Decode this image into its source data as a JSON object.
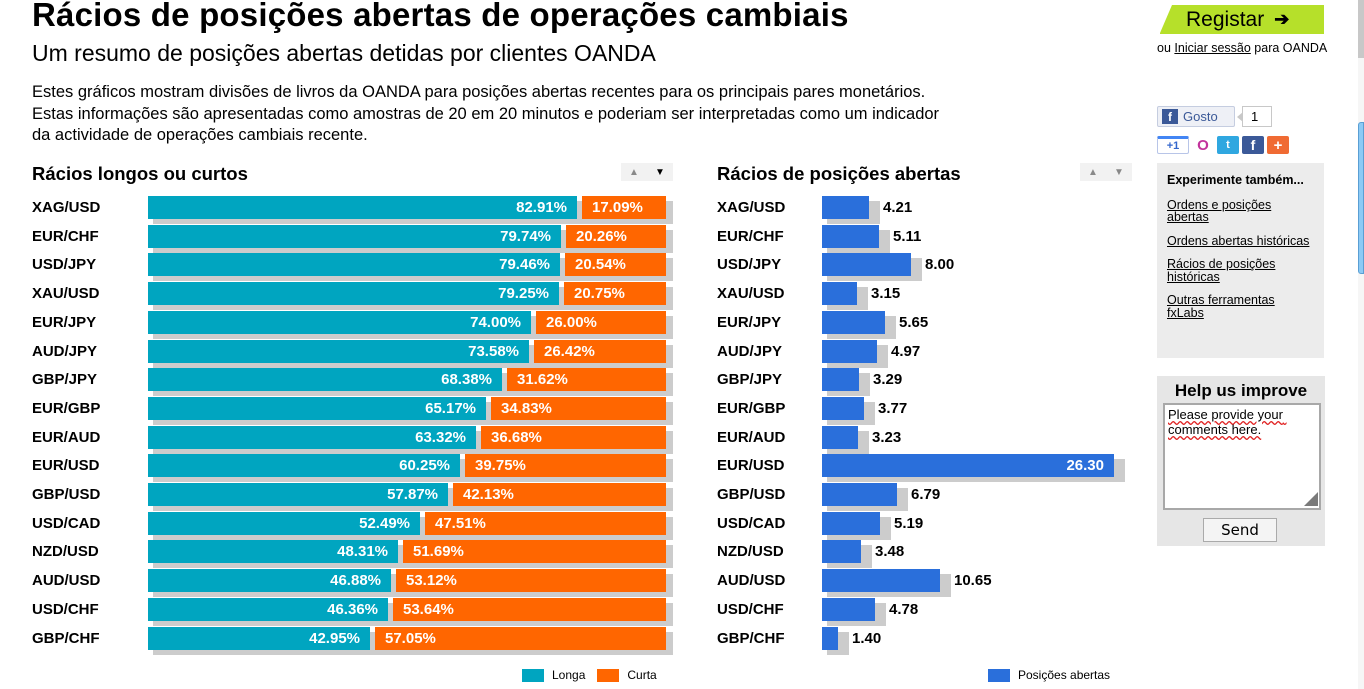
{
  "header": {
    "title": "Rácios de posições abertas de operações cambiais",
    "subtitle": "Um resumo de posições abertas detidas por clientes OANDA",
    "intro_lines": [
      "Estes gráficos mostram divisões de livros da OANDA para posições abertas recentes para os principais pares monetários.",
      "Estas informações são apresentadas como amostras de 20 em 20 minutos e poderiam ser interpretadas como um indicador",
      "da actividade de operações cambiais recente."
    ]
  },
  "colors": {
    "long": "#00a5c0",
    "short": "#ff6600",
    "open_positions": "#2a6fdb",
    "shadow": "#cccccc",
    "register": "#b6e02a"
  },
  "chart_data": [
    {
      "type": "bar",
      "orientation": "horizontal",
      "stacked": true,
      "title": "Rácios longos ou curtos",
      "categories": [
        "XAG/USD",
        "EUR/CHF",
        "USD/JPY",
        "XAU/USD",
        "EUR/JPY",
        "AUD/JPY",
        "GBP/JPY",
        "EUR/GBP",
        "EUR/AUD",
        "EUR/USD",
        "GBP/USD",
        "USD/CAD",
        "NZD/USD",
        "AUD/USD",
        "USD/CHF",
        "GBP/CHF"
      ],
      "series": [
        {
          "name": "Longa",
          "color": "#00a5c0",
          "values": [
            82.91,
            79.74,
            79.46,
            79.25,
            74.0,
            73.58,
            68.38,
            65.17,
            63.32,
            60.25,
            57.87,
            52.49,
            48.31,
            46.88,
            46.36,
            42.95
          ],
          "labels": [
            "82.91%",
            "79.74%",
            "79.46%",
            "79.25%",
            "74.00%",
            "73.58%",
            "68.38%",
            "65.17%",
            "63.32%",
            "60.25%",
            "57.87%",
            "52.49%",
            "48.31%",
            "46.88%",
            "46.36%",
            "42.95%"
          ]
        },
        {
          "name": "Curta",
          "color": "#ff6600",
          "values": [
            17.09,
            20.26,
            20.54,
            20.75,
            26.0,
            26.42,
            31.62,
            34.83,
            36.68,
            39.75,
            42.13,
            47.51,
            51.69,
            53.12,
            53.64,
            57.05
          ],
          "labels": [
            "17.09%",
            "20.26%",
            "20.54%",
            "20.75%",
            "26.00%",
            "26.42%",
            "31.62%",
            "34.83%",
            "36.68%",
            "39.75%",
            "42.13%",
            "47.51%",
            "51.69%",
            "53.12%",
            "53.64%",
            "57.05%"
          ]
        }
      ],
      "xlim": [
        0,
        100
      ],
      "legend": "bottom-right",
      "grid": false
    },
    {
      "type": "bar",
      "orientation": "horizontal",
      "title": "Rácios de posições abertas",
      "categories": [
        "XAG/USD",
        "EUR/CHF",
        "USD/JPY",
        "XAU/USD",
        "EUR/JPY",
        "AUD/JPY",
        "GBP/JPY",
        "EUR/GBP",
        "EUR/AUD",
        "EUR/USD",
        "GBP/USD",
        "USD/CAD",
        "NZD/USD",
        "AUD/USD",
        "USD/CHF",
        "GBP/CHF"
      ],
      "series": [
        {
          "name": "Posições abertas",
          "color": "#2a6fdb",
          "values": [
            4.21,
            5.11,
            8.0,
            3.15,
            5.65,
            4.97,
            3.29,
            3.77,
            3.23,
            26.3,
            6.79,
            5.19,
            3.48,
            10.65,
            4.78,
            1.4
          ],
          "labels": [
            "4.21",
            "5.11",
            "8.00",
            "3.15",
            "5.65",
            "4.97",
            "3.29",
            "3.77",
            "3.23",
            "26.30",
            "6.79",
            "5.19",
            "3.48",
            "10.65",
            "4.78",
            "1.40"
          ]
        }
      ],
      "xlim": [
        0,
        26.3
      ],
      "legend": "bottom-right",
      "grid": false
    }
  ],
  "sort": {
    "up_icon": "▲",
    "down_icon": "▼"
  },
  "sidebar": {
    "register_label": "Registar",
    "register_arrow": "➔",
    "login_prefix": "ou ",
    "login_link": "Iniciar sessão",
    "login_suffix": " para OANDA",
    "like_label": "Gosto",
    "like_icon": "f",
    "like_count": "1",
    "share_icons": [
      {
        "name": "google-plus-one-icon",
        "glyph": "+1",
        "cls": "gplus"
      },
      {
        "name": "orkut-icon",
        "glyph": "O",
        "cls": "orkut"
      },
      {
        "name": "twitter-icon",
        "glyph": "t",
        "cls": "twitter"
      },
      {
        "name": "facebook-icon",
        "glyph": "f",
        "cls": "facebook"
      },
      {
        "name": "addthis-more-icon",
        "glyph": "+",
        "cls": "more"
      }
    ],
    "try_heading": "Experimente também...",
    "try_links": [
      "Ordens e posições abertas",
      "Ordens abertas históricas",
      "Rácios de posições históricas",
      "Outras ferramentas fxLabs"
    ],
    "help_heading": "Help us improve",
    "help_text": "Please provide your comments here.",
    "send_label": "Send"
  }
}
